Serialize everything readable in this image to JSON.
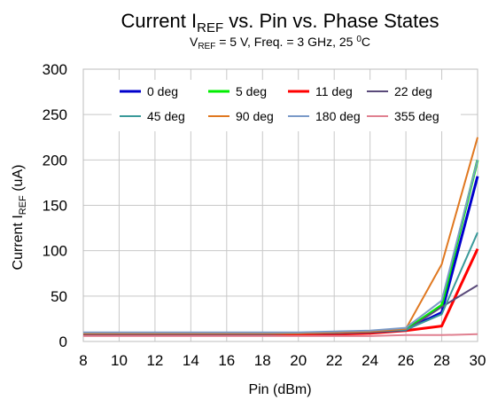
{
  "chart_data": {
    "type": "line",
    "title": {
      "main": "Current I",
      "sub": "REF",
      "rest": " vs. Pin vs. Phase States"
    },
    "subtitle": {
      "a": "V",
      "a_sub": "REF",
      "b": " = 5 V, Freq. = 3 GHz, 25 ",
      "b_sup": "0",
      "c": "C"
    },
    "xlabel": "Pin (dBm)",
    "ylabel": {
      "main": "Current I",
      "sub": "REF",
      "rest": " (uA)"
    },
    "x": [
      8,
      10,
      12,
      14,
      16,
      18,
      20,
      22,
      24,
      26,
      28,
      30
    ],
    "xlim": [
      8,
      30
    ],
    "ylim": [
      0,
      300
    ],
    "xticks": [
      8,
      10,
      12,
      14,
      16,
      18,
      20,
      22,
      24,
      26,
      28,
      30
    ],
    "yticks": [
      0,
      50,
      100,
      150,
      200,
      250,
      300
    ],
    "grid": true,
    "legend_position": "top",
    "series": [
      {
        "name": "0 deg",
        "color": "#0000cc",
        "values": [
          9,
          9,
          9,
          9,
          9,
          9,
          9,
          10,
          11,
          13,
          32,
          182
        ]
      },
      {
        "name": "5 deg",
        "color": "#00ee00",
        "values": [
          9,
          9,
          9,
          9,
          9,
          9,
          9,
          10,
          11,
          13,
          40,
          200
        ]
      },
      {
        "name": "11 deg",
        "color": "#ff0000",
        "values": [
          7,
          7,
          7,
          7,
          7,
          7,
          8,
          8,
          9,
          12,
          17,
          102
        ]
      },
      {
        "name": "22 deg",
        "color": "#5a4a7a",
        "values": [
          8,
          8,
          8,
          8,
          8,
          8,
          9,
          9,
          10,
          12,
          38,
          62
        ]
      },
      {
        "name": "45 deg",
        "color": "#3a9a9a",
        "values": [
          9,
          9,
          9,
          9,
          9,
          9,
          9,
          10,
          11,
          13,
          30,
          120
        ]
      },
      {
        "name": "90 deg",
        "color": "#e07820",
        "values": [
          9,
          9,
          9,
          9,
          9,
          9,
          9,
          10,
          11,
          14,
          85,
          225
        ]
      },
      {
        "name": "180 deg",
        "color": "#7a9ac8",
        "values": [
          10,
          10,
          10,
          10,
          10,
          10,
          10,
          11,
          12,
          15,
          45,
          200
        ]
      },
      {
        "name": "355 deg",
        "color": "#e08090",
        "values": [
          6,
          6,
          6,
          6,
          6,
          6,
          6,
          6,
          6,
          7,
          7,
          8
        ]
      }
    ]
  }
}
